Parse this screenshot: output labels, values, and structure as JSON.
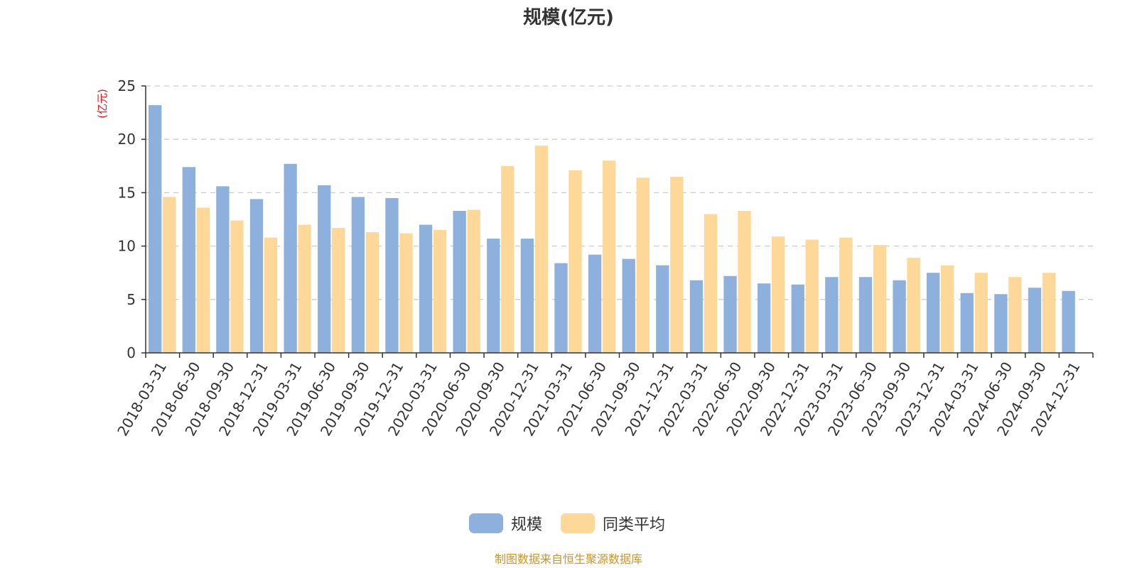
{
  "chart_data": {
    "type": "bar",
    "title": "规模(亿元)",
    "ylabel": "(亿元)",
    "xlabel": "",
    "ylim": [
      0,
      25
    ],
    "yticks": [
      0,
      5,
      10,
      15,
      20,
      25
    ],
    "grid": true,
    "legend_position": "bottom",
    "categories": [
      "2018-03-31",
      "2018-06-30",
      "2018-09-30",
      "2018-12-31",
      "2019-03-31",
      "2019-06-30",
      "2019-09-30",
      "2019-12-31",
      "2020-03-31",
      "2020-06-30",
      "2020-09-30",
      "2020-12-31",
      "2021-03-31",
      "2021-06-30",
      "2021-09-30",
      "2021-12-31",
      "2022-03-31",
      "2022-06-30",
      "2022-09-30",
      "2022-12-31",
      "2023-03-31",
      "2023-06-30",
      "2023-09-30",
      "2023-12-31",
      "2024-03-31",
      "2024-06-30",
      "2024-09-30",
      "2024-12-31"
    ],
    "series": [
      {
        "name": "规模",
        "color": "#8eb0dc",
        "values": [
          23.2,
          17.4,
          15.6,
          14.4,
          17.7,
          15.7,
          14.6,
          14.5,
          12.0,
          13.3,
          10.7,
          10.7,
          8.4,
          9.2,
          8.8,
          8.2,
          6.8,
          7.2,
          6.5,
          6.4,
          7.1,
          7.1,
          6.8,
          7.5,
          5.6,
          5.5,
          6.1,
          5.8
        ]
      },
      {
        "name": "同类平均",
        "color": "#fdd898",
        "values": [
          14.6,
          13.6,
          12.4,
          10.8,
          12.0,
          11.7,
          11.3,
          11.2,
          11.5,
          13.4,
          17.5,
          19.4,
          17.1,
          18.0,
          16.4,
          16.5,
          13.0,
          13.3,
          10.9,
          10.6,
          10.8,
          10.1,
          8.9,
          8.2,
          7.5,
          7.1,
          7.5,
          null
        ]
      }
    ]
  },
  "source": "制图数据来自恒生聚源数据库"
}
